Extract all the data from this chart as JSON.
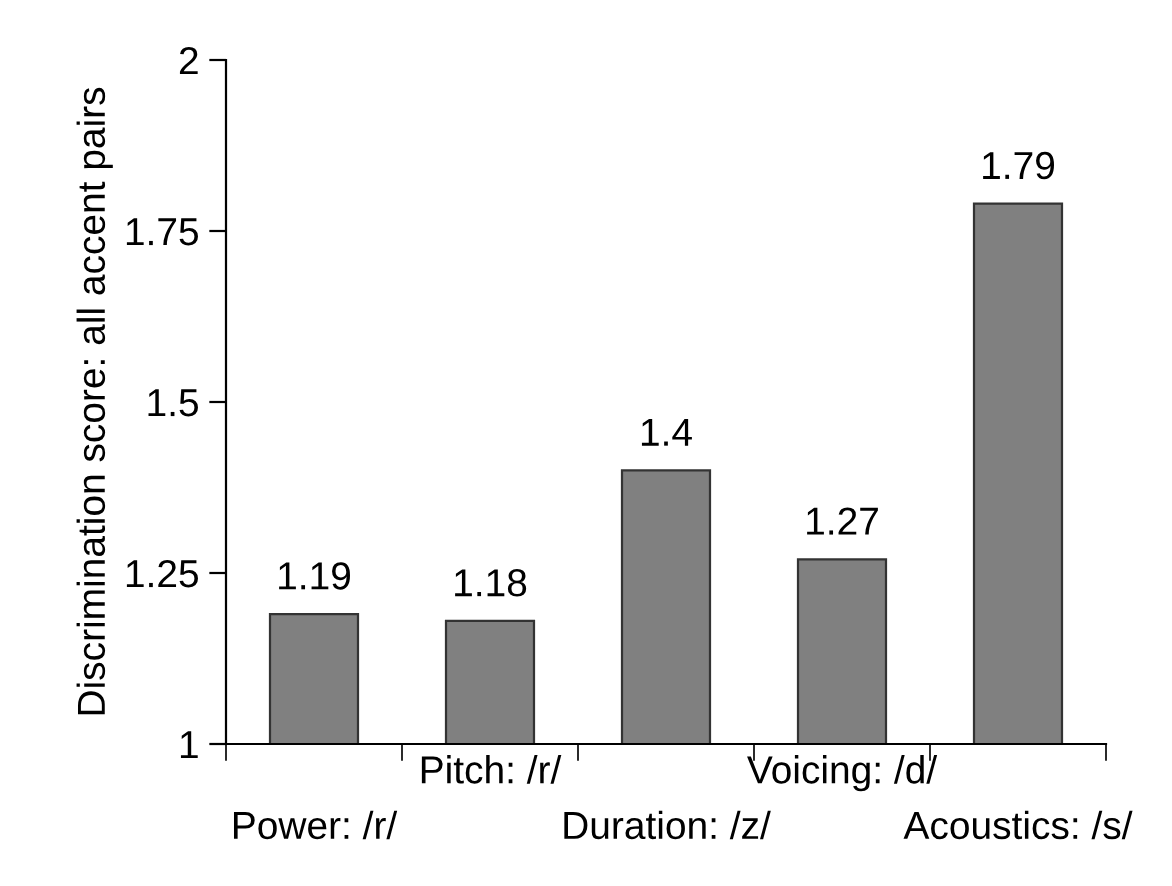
{
  "chart_data": {
    "type": "bar",
    "ylabel": "Discrimination score: all accent pairs",
    "categories": [
      "Power: /r/",
      "Pitch: /r/",
      "Duration: /z/",
      "Voicing: /d/",
      "Acoustics: /s/"
    ],
    "values": [
      1.19,
      1.18,
      1.4,
      1.27,
      1.79
    ],
    "color": "#808080",
    "ylim": [
      1,
      2
    ],
    "yticks": [
      1,
      1.25,
      1.5,
      1.75,
      2
    ],
    "grid": false,
    "data_labels": true
  }
}
